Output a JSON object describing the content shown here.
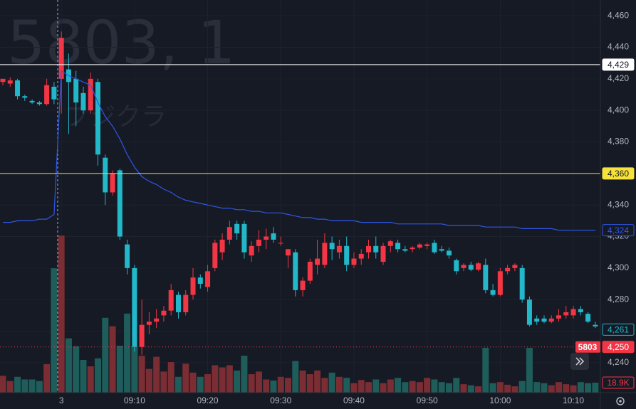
{
  "chart_data": {
    "type": "candlestick",
    "watermark": {
      "symbol": "5803, 1",
      "name": "フジクラ"
    },
    "categories": [
      null,
      null,
      null,
      null,
      null,
      null,
      null,
      null,
      "3",
      null,
      null,
      null,
      null,
      null,
      null,
      null,
      null,
      null,
      "09:10",
      null,
      null,
      null,
      null,
      null,
      null,
      null,
      null,
      null,
      "09:20",
      null,
      null,
      null,
      null,
      null,
      null,
      null,
      null,
      null,
      "09:30",
      null,
      null,
      null,
      null,
      null,
      null,
      null,
      null,
      null,
      "09:40",
      null,
      null,
      null,
      null,
      null,
      null,
      null,
      null,
      null,
      "09:50",
      null,
      null,
      null,
      null,
      null,
      null,
      null,
      null,
      null,
      "10:00",
      null,
      null,
      null,
      null,
      null,
      null,
      null,
      null,
      null,
      "10:10",
      null,
      null,
      null
    ],
    "open": [
      4418,
      4417,
      4419,
      4409,
      4406,
      4405,
      4404,
      4415,
      4420,
      4426,
      4420,
      4411,
      4400,
      4418,
      4370,
      4348,
      4362,
      4315,
      4300,
      4250,
      4264,
      4266,
      4270,
      4273,
      4283,
      4272,
      4283,
      4294,
      4288,
      4300,
      4310,
      4318,
      4328,
      4328,
      4308,
      4314,
      4318,
      4322,
      4316,
      4308,
      4310,
      4286,
      4292,
      4302,
      4302,
      4316,
      4310,
      4314,
      4302,
      4306,
      4310,
      4314,
      4304,
      4314,
      4316,
      4312,
      4312,
      4313,
      4314,
      4316,
      4312,
      4311,
      4305,
      4300,
      4302,
      4299,
      4302,
      4286,
      4283,
      4298,
      4300,
      4300,
      4280,
      4268,
      4268,
      4266,
      4268,
      4270,
      4270,
      4274,
      4271,
      4264
    ],
    "high": [
      4420,
      4421,
      4420,
      4410,
      4407,
      4406,
      4420,
      4418,
      4450,
      4436,
      4425,
      4415,
      4424,
      4420,
      4372,
      4362,
      4363,
      4318,
      4302,
      4280,
      4272,
      4274,
      4276,
      4290,
      4285,
      4286,
      4300,
      4296,
      4302,
      4318,
      4322,
      4330,
      4330,
      4330,
      4317,
      4324,
      4325,
      4326,
      4320,
      4312,
      4312,
      4294,
      4306,
      4318,
      4322,
      4320,
      4318,
      4320,
      4310,
      4312,
      4318,
      4320,
      4316,
      4318,
      4318,
      4314,
      4314,
      4316,
      4316,
      4318,
      4314,
      4313,
      4306,
      4303,
      4304,
      4304,
      4306,
      4290,
      4300,
      4302,
      4303,
      4302,
      4282,
      4270,
      4270,
      4270,
      4274,
      4276,
      4276,
      4276,
      4272,
      4266
    ],
    "low": [
      4416,
      4415,
      4407,
      4406,
      4404,
      4403,
      4403,
      4404,
      4398,
      4385,
      4390,
      4398,
      4398,
      4365,
      4340,
      4346,
      4318,
      4296,
      4247,
      4245,
      4258,
      4262,
      4266,
      4270,
      4268,
      4270,
      4280,
      4287,
      4285,
      4298,
      4305,
      4315,
      4318,
      4306,
      4304,
      4310,
      4312,
      4316,
      4314,
      4300,
      4282,
      4282,
      4290,
      4296,
      4300,
      4305,
      4306,
      4298,
      4300,
      4302,
      4306,
      4306,
      4302,
      4310,
      4310,
      4310,
      4310,
      4312,
      4312,
      4309,
      4310,
      4306,
      4296,
      4298,
      4298,
      4298,
      4284,
      4282,
      4282,
      4296,
      4298,
      4278,
      4263,
      4264,
      4265,
      4265,
      4266,
      4268,
      4268,
      4270,
      4265,
      4262
    ],
    "close": [
      4420,
      4419,
      4409,
      4408,
      4405,
      4404,
      4416,
      4407,
      4446,
      4418,
      4405,
      4400,
      4420,
      4372,
      4348,
      4360,
      4320,
      4300,
      4250,
      4264,
      4266,
      4268,
      4273,
      4286,
      4272,
      4283,
      4294,
      4290,
      4298,
      4316,
      4318,
      4326,
      4322,
      4310,
      4314,
      4318,
      4320,
      4318,
      4316,
      4312,
      4286,
      4292,
      4304,
      4306,
      4316,
      4312,
      4314,
      4302,
      4306,
      4309,
      4314,
      4310,
      4314,
      4317,
      4312,
      4311,
      4313,
      4315,
      4315,
      4310,
      4311,
      4308,
      4298,
      4302,
      4299,
      4303,
      4286,
      4283,
      4298,
      4300,
      4302,
      4280,
      4264,
      4266,
      4266,
      4268,
      4270,
      4272,
      4274,
      4272,
      4266,
      4263
    ],
    "volume": [
      32,
      22,
      30,
      25,
      25,
      22,
      54,
      236,
      298,
      103,
      88,
      62,
      50,
      65,
      142,
      126,
      89,
      150,
      87,
      70,
      45,
      68,
      40,
      58,
      30,
      55,
      38,
      30,
      35,
      52,
      48,
      52,
      42,
      70,
      35,
      40,
      25,
      23,
      30,
      28,
      60,
      42,
      35,
      42,
      28,
      38,
      30,
      28,
      18,
      24,
      20,
      25,
      18,
      25,
      28,
      20,
      22,
      20,
      28,
      25,
      20,
      18,
      28,
      16,
      14,
      12,
      85,
      18,
      20,
      15,
      12,
      22,
      85,
      20,
      18,
      14,
      20,
      16,
      14,
      20,
      18,
      18.9
    ],
    "vwap": [
      4329,
      4329,
      4330,
      4330,
      4330,
      4331,
      4331,
      4334,
      4425,
      4422,
      4420,
      4418,
      4416,
      4405,
      4396,
      4390,
      4382,
      4372,
      4364,
      4358,
      4355,
      4353,
      4350,
      4348,
      4345,
      4343,
      4342,
      4341,
      4340,
      4339,
      4338,
      4338,
      4337,
      4337,
      4336,
      4336,
      4335,
      4335,
      4335,
      4334,
      4333,
      4332,
      4332,
      4331,
      4331,
      4330,
      4330,
      4330,
      4330,
      4329,
      4329,
      4329,
      4329,
      4329,
      4328,
      4328,
      4328,
      4328,
      4328,
      4328,
      4328,
      4327,
      4327,
      4327,
      4327,
      4327,
      4326,
      4326,
      4326,
      4326,
      4326,
      4325,
      4325,
      4325,
      4325,
      4325,
      4324,
      4324,
      4324,
      4324,
      4324,
      4324
    ],
    "up_color": "#f23645",
    "down_color": "#22b7c9",
    "volume_up_color": "#7a2d33",
    "volume_down_color": "#1f5d5b",
    "vwap_color": "#2f57e8",
    "ylim": [
      4221,
      4470
    ],
    "yticks": [
      {
        "value": 4240,
        "label": "4,240"
      },
      {
        "value": 4260,
        "label": "4,260"
      },
      {
        "value": 4280,
        "label": "4,280"
      },
      {
        "value": 4300,
        "label": "4,300"
      },
      {
        "value": 4320,
        "label": "4,320"
      },
      {
        "value": 4340,
        "label": "4,340"
      },
      {
        "value": 4360,
        "label": "4,360"
      },
      {
        "value": 4380,
        "label": "4,380"
      },
      {
        "value": 4400,
        "label": "4,400"
      },
      {
        "value": 4420,
        "label": "4,420"
      },
      {
        "value": 4440,
        "label": "4,440"
      },
      {
        "value": 4460,
        "label": "4,460"
      }
    ],
    "volume_ylim": [
      0,
      745
    ],
    "grid": true,
    "price_labels": [
      {
        "value": 4429,
        "label": "4,429",
        "color": "#ffffff",
        "text_color": "#131722",
        "line": "solid"
      },
      {
        "value": 4360,
        "label": "4,360",
        "color": "#f7e13d",
        "text_color": "#131722",
        "line": "solid"
      },
      {
        "value": 4324,
        "label": "4,324",
        "color": "#2f57e8",
        "text_color": "#2f57e8",
        "outline": true
      },
      {
        "value": 4261,
        "label": "4,261",
        "color": "#22b7c9",
        "text_color": "#22b7c9",
        "outline": true
      },
      {
        "value": 4250,
        "label": "4,250",
        "color": "#f23645",
        "text_color": "#ffffff",
        "line": "dotted",
        "symbol": "5803"
      }
    ],
    "volume_label": {
      "value": 18.9,
      "label": "18.9K",
      "color": "#f23645"
    }
  }
}
